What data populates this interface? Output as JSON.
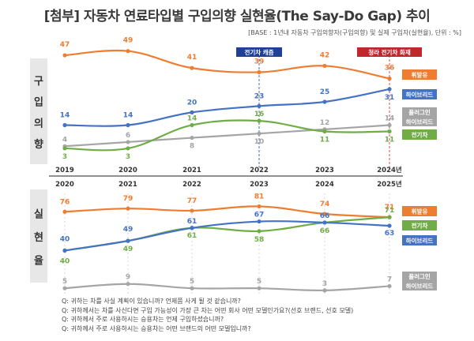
{
  "title": "[첨부] 자동차 연료타입별 구입의향 실현율(The Say-Do Gap) 추이",
  "base_note": "[BASE : 1년내 자동차 구입의향자(구입의향) 및 실제 구입자(실현율), 단위 : %]",
  "notes": [
    "Q: 귀하는 차를 사실 계획이 있습니까? 언제쯤 사게 될 것 같습니까?",
    "Q: 귀하께서는 차를 사신다면 구입 가능성이 가장 큰 차는 어떤 회사 어떤 모델인가요?(선호 브랜드, 선호 모델)",
    "Q: 귀하께서 주로 사용하시는 승용차는 언제 구입하셨습니까?",
    "Q: 귀하께서 주로 사용하시는 승용차는 어떤 브랜드의 어떤 모델입니까?"
  ],
  "colors": {
    "gasoline": "#ee7d31",
    "hybrid": "#4472c4",
    "plugin": "#a5a5a5",
    "ev": "#70ad47",
    "marker_blue": "#1f3f99",
    "marker_red": "#c0282d",
    "section_bg": "#e7e7e7"
  },
  "chart_data": [
    {
      "type": "line",
      "section_label": "구입의향",
      "x": [
        "2019",
        "2020",
        "2021",
        "2022",
        "2023",
        "2024년"
      ],
      "ylim": [
        0,
        50
      ],
      "series": [
        {
          "key": "gasoline",
          "name": "휘발유",
          "values": [
            47,
            49,
            41,
            39,
            42,
            36
          ]
        },
        {
          "key": "hybrid",
          "name": "하이브리드",
          "values": [
            14,
            14,
            20,
            23,
            25,
            31
          ]
        },
        {
          "key": "plugin",
          "name": "플러그인\n하이브리드",
          "values": [
            4,
            6,
            8,
            10,
            12,
            14
          ]
        },
        {
          "key": "ev",
          "name": "전기차",
          "values": [
            3,
            3,
            14,
            16,
            11,
            11
          ]
        }
      ],
      "annotations": [
        {
          "label": "전기차 캐즘",
          "x": "2022",
          "color": "marker_blue"
        },
        {
          "label": "청라 전기차 화재",
          "x": "2024년",
          "color": "marker_red"
        }
      ]
    },
    {
      "type": "line",
      "section_label": "실현율",
      "x": [
        "2020",
        "2021",
        "2022",
        "2023",
        "2024",
        "2025년"
      ],
      "ylim": [
        0,
        85
      ],
      "series": [
        {
          "key": "gasoline",
          "name": "휘발유",
          "values": [
            76,
            79,
            77,
            81,
            74,
            71
          ]
        },
        {
          "key": "ev",
          "name": "전기차",
          "values": [
            40,
            49,
            61,
            58,
            66,
            71
          ]
        },
        {
          "key": "hybrid",
          "name": "하이브리드",
          "values": [
            40,
            49,
            61,
            67,
            66,
            63
          ]
        },
        {
          "key": "plugin",
          "name": "플러그인\n하이브리드",
          "values": [
            5,
            9,
            5,
            5,
            3,
            7
          ]
        }
      ]
    }
  ]
}
